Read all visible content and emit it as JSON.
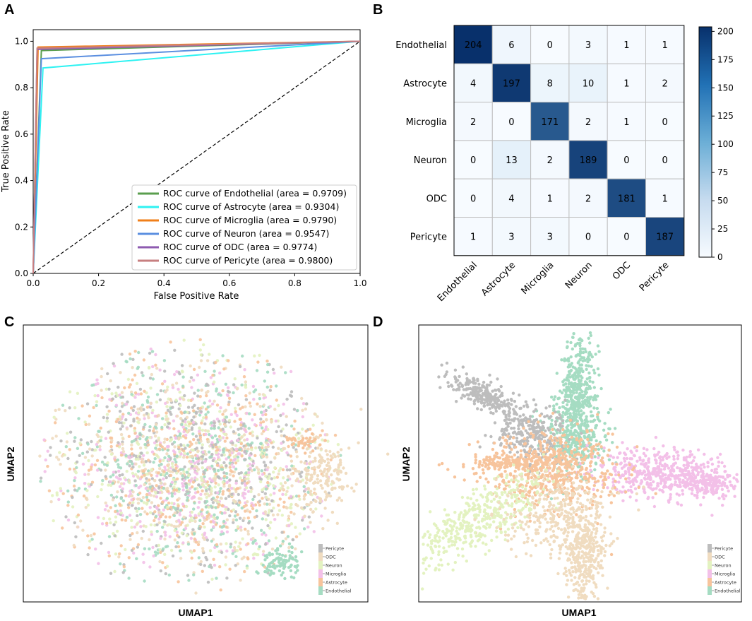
{
  "panel_labels": {
    "a": "A",
    "b": "B",
    "c": "C",
    "d": "D"
  },
  "chart_data": [
    {
      "type": "line",
      "panel": "A",
      "xlabel": "False Positive Rate",
      "ylabel": "True Positive Rate",
      "xlim": [
        0,
        1
      ],
      "ylim": [
        0,
        1.05
      ],
      "xticks": [
        "0.0",
        "0.2",
        "0.4",
        "0.6",
        "0.8",
        "1.0"
      ],
      "yticks": [
        "0.0",
        "0.2",
        "0.4",
        "0.6",
        "0.8",
        "1.0"
      ],
      "legend_position": "bottom-right",
      "series": [
        {
          "name": "ROC curve of Endothelial (area = 0.9709)",
          "color": "#5a9e4e",
          "x": [
            0,
            0.025,
            1
          ],
          "y": [
            0,
            0.96,
            1
          ]
        },
        {
          "name": "ROC curve of Astrocyte (area = 0.9304)",
          "color": "#2ef2f2",
          "x": [
            0,
            0.03,
            1
          ],
          "y": [
            0,
            0.885,
            1
          ]
        },
        {
          "name": "ROC curve of Microglia (area = 0.9790)",
          "color": "#f07f1a",
          "x": [
            0,
            0.015,
            1
          ],
          "y": [
            0,
            0.975,
            1
          ]
        },
        {
          "name": "ROC curve of Neuron (area = 0.9547)",
          "color": "#5b8fe0",
          "x": [
            0,
            0.025,
            1
          ],
          "y": [
            0,
            0.925,
            1
          ]
        },
        {
          "name": "ROC curve of ODC (area = 0.9774)",
          "color": "#8e5bb0",
          "x": [
            0,
            0.012,
            1
          ],
          "y": [
            0,
            0.965,
            1
          ]
        },
        {
          "name": "ROC curve of Pericyte (area = 0.9800)",
          "color": "#c77f80",
          "x": [
            0,
            0.012,
            1
          ],
          "y": [
            0,
            0.97,
            1
          ]
        }
      ],
      "reference_line": {
        "x": [
          0,
          1
        ],
        "y": [
          0,
          1
        ],
        "style": "dashed"
      }
    },
    {
      "type": "heatmap",
      "panel": "B",
      "row_labels": [
        "Endothelial",
        "Astrocyte",
        "Microglia",
        "Neuron",
        "ODC",
        "Pericyte"
      ],
      "col_labels": [
        "Endothelial",
        "Astrocyte",
        "Microglia",
        "Neuron",
        "ODC",
        "Pericyte"
      ],
      "matrix": [
        [
          204,
          6,
          0,
          3,
          1,
          1
        ],
        [
          4,
          197,
          8,
          10,
          1,
          2
        ],
        [
          2,
          0,
          171,
          2,
          1,
          0
        ],
        [
          0,
          13,
          2,
          189,
          0,
          0
        ],
        [
          0,
          4,
          1,
          2,
          181,
          1
        ],
        [
          1,
          3,
          3,
          0,
          0,
          187
        ]
      ],
      "colorbar": {
        "min": 0,
        "max": 204,
        "ticks": [
          "0",
          "25",
          "50",
          "75",
          "100",
          "125",
          "150",
          "175",
          "200"
        ],
        "tick_values": [
          0,
          25,
          50,
          75,
          100,
          125,
          150,
          175,
          200
        ],
        "low_color": "#f7fbff",
        "high_color": "#08306b"
      }
    },
    {
      "type": "scatter",
      "panel": "C",
      "xlabel": "UMAP1",
      "ylabel": "UMAP2",
      "legend": [
        "Pericyte",
        "ODC",
        "Neuron",
        "Microglia",
        "Astrocyte",
        "Endothelial"
      ],
      "colors": {
        "Pericyte": "#bdbdbd",
        "ODC": "#f0dcc0",
        "Neuron": "#e3f2c0",
        "Microglia": "#f3c0e8",
        "Astrocyte": "#f7c49c",
        "Endothelial": "#a5dcc2"
      }
    },
    {
      "type": "scatter",
      "panel": "D",
      "xlabel": "UMAP1",
      "ylabel": "UMAP2",
      "legend": [
        "Pericyte",
        "ODC",
        "Neuron",
        "Microglia",
        "Astrocyte",
        "Endothelial"
      ],
      "colors": {
        "Pericyte": "#bdbdbd",
        "ODC": "#f0dcc0",
        "Neuron": "#e3f2c0",
        "Microglia": "#f3c0e8",
        "Astrocyte": "#f7c49c",
        "Endothelial": "#a5dcc2"
      }
    }
  ]
}
